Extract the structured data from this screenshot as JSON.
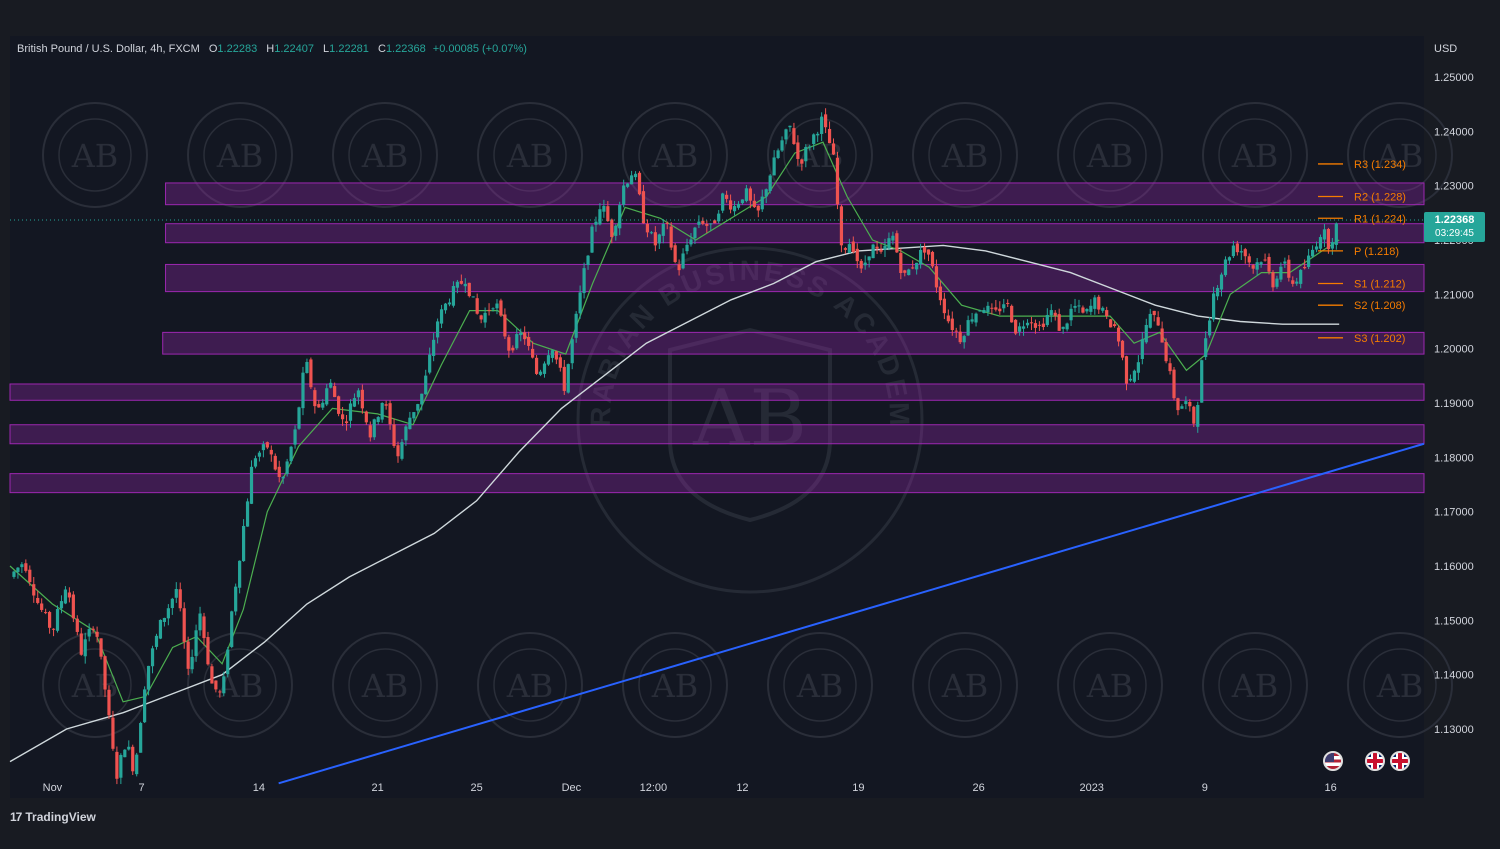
{
  "header": {
    "symbol": "British Pound / U.S. Dollar, 4h, FXCM",
    "o_label": "O",
    "o": "1.22283",
    "h_label": "H",
    "h": "1.22407",
    "l_label": "L",
    "l": "1.22281",
    "c_label": "C",
    "c": "1.22368",
    "change": "+0.00085 (+0.07%)"
  },
  "currency": "USD",
  "last_price": {
    "value": "1.22368",
    "countdown": "03:29:45",
    "color": "#26a69a"
  },
  "brand": {
    "logo": "17",
    "name": "TradingView"
  },
  "watermark": {
    "initials": "AB",
    "text": "ARABIAN BUSINESS ACADEMY"
  },
  "colors": {
    "background": "#181b22",
    "up": "#26a69a",
    "down": "#ef5350",
    "zone": "#9c27b0",
    "ema_fast": "#4caf50",
    "ma_slow": "#cfd8dc",
    "trendline": "#2962ff",
    "pivot": "#f57c00"
  },
  "chart_data": {
    "type": "candlestick",
    "title": "British Pound / U.S. Dollar, 4h, FXCM",
    "ylim": [
      1.12,
      1.255
    ],
    "yticks": [
      "1.13000",
      "1.14000",
      "1.15000",
      "1.16000",
      "1.17000",
      "1.18000",
      "1.19000",
      "1.20000",
      "1.21000",
      "1.22000",
      "1.23000",
      "1.24000",
      "1.25000"
    ],
    "x_range": [
      0,
      100
    ],
    "xticks": [
      {
        "label": "Nov",
        "t": 3
      },
      {
        "label": "7",
        "t": 9.3
      },
      {
        "label": "14",
        "t": 17.6
      },
      {
        "label": "21",
        "t": 26
      },
      {
        "label": "25",
        "t": 33
      },
      {
        "label": "Dec",
        "t": 39.7
      },
      {
        "label": "12:00",
        "t": 45.5
      },
      {
        "label": "12",
        "t": 51.8
      },
      {
        "label": "19",
        "t": 60
      },
      {
        "label": "26",
        "t": 68.5
      },
      {
        "label": "2023",
        "t": 76.5
      },
      {
        "label": "9",
        "t": 84.5
      },
      {
        "label": "16",
        "t": 93.4
      }
    ],
    "price_path": [
      [
        0,
        1.158
      ],
      [
        1,
        1.161
      ],
      [
        2,
        1.153
      ],
      [
        3,
        1.148
      ],
      [
        4,
        1.157
      ],
      [
        5,
        1.144
      ],
      [
        6,
        1.15
      ],
      [
        6.8,
        1.136
      ],
      [
        7.5,
        1.121
      ],
      [
        8.2,
        1.128
      ],
      [
        8.8,
        1.122
      ],
      [
        9.6,
        1.14
      ],
      [
        10.6,
        1.149
      ],
      [
        11.8,
        1.156
      ],
      [
        12.6,
        1.14
      ],
      [
        13.4,
        1.152
      ],
      [
        14.3,
        1.138
      ],
      [
        15,
        1.136
      ],
      [
        15.6,
        1.15
      ],
      [
        16.4,
        1.165
      ],
      [
        17.2,
        1.18
      ],
      [
        18.2,
        1.182
      ],
      [
        19.2,
        1.175
      ],
      [
        20.2,
        1.185
      ],
      [
        20.9,
        1.198
      ],
      [
        21.7,
        1.188
      ],
      [
        22.6,
        1.194
      ],
      [
        23.6,
        1.186
      ],
      [
        24.6,
        1.193
      ],
      [
        25.5,
        1.184
      ],
      [
        26.4,
        1.191
      ],
      [
        27.4,
        1.18
      ],
      [
        28.2,
        1.187
      ],
      [
        29.2,
        1.192
      ],
      [
        30.2,
        1.205
      ],
      [
        31.2,
        1.21
      ],
      [
        32.2,
        1.213
      ],
      [
        33.2,
        1.205
      ],
      [
        34.3,
        1.209
      ],
      [
        35.3,
        1.2
      ],
      [
        36.3,
        1.203
      ],
      [
        37.3,
        1.195
      ],
      [
        38.3,
        1.201
      ],
      [
        39.2,
        1.193
      ],
      [
        40.2,
        1.208
      ],
      [
        41.0,
        1.22
      ],
      [
        41.8,
        1.227
      ],
      [
        42.6,
        1.221
      ],
      [
        43.4,
        1.23
      ],
      [
        44.1,
        1.233
      ],
      [
        44.8,
        1.224
      ],
      [
        45.6,
        1.219
      ],
      [
        46.4,
        1.223
      ],
      [
        47.2,
        1.214
      ],
      [
        48.0,
        1.22
      ],
      [
        48.8,
        1.224
      ],
      [
        49.6,
        1.222
      ],
      [
        50.4,
        1.228
      ],
      [
        51.2,
        1.226
      ],
      [
        52.0,
        1.229
      ],
      [
        52.8,
        1.224
      ],
      [
        53.6,
        1.231
      ],
      [
        54.4,
        1.237
      ],
      [
        55.2,
        1.241
      ],
      [
        55.8,
        1.234
      ],
      [
        56.6,
        1.238
      ],
      [
        57.4,
        1.242
      ],
      [
        58.2,
        1.236
      ],
      [
        58.8,
        1.218
      ],
      [
        59.5,
        1.22
      ],
      [
        60.2,
        1.214
      ],
      [
        60.9,
        1.219
      ],
      [
        61.6,
        1.217
      ],
      [
        62.4,
        1.221
      ],
      [
        63.2,
        1.213
      ],
      [
        64.0,
        1.216
      ],
      [
        64.8,
        1.219
      ],
      [
        65.6,
        1.211
      ],
      [
        66.4,
        1.205
      ],
      [
        67.2,
        1.202
      ],
      [
        68.0,
        1.206
      ],
      [
        68.8,
        1.208
      ],
      [
        69.6,
        1.206
      ],
      [
        70.4,
        1.209
      ],
      [
        71.2,
        1.203
      ],
      [
        72.0,
        1.206
      ],
      [
        72.8,
        1.204
      ],
      [
        73.6,
        1.207
      ],
      [
        74.4,
        1.203
      ],
      [
        75.2,
        1.208
      ],
      [
        76.0,
        1.206
      ],
      [
        76.8,
        1.209
      ],
      [
        77.6,
        1.205
      ],
      [
        78.2,
        1.204
      ],
      [
        79.0,
        1.194
      ],
      [
        79.8,
        1.198
      ],
      [
        80.5,
        1.206
      ],
      [
        81.2,
        1.205
      ],
      [
        81.8,
        1.198
      ],
      [
        82.5,
        1.189
      ],
      [
        83.2,
        1.19
      ],
      [
        83.8,
        1.186
      ],
      [
        84.4,
        1.2
      ],
      [
        85.1,
        1.21
      ],
      [
        85.8,
        1.215
      ],
      [
        86.5,
        1.219
      ],
      [
        87.2,
        1.218
      ],
      [
        87.9,
        1.215
      ],
      [
        88.6,
        1.217
      ],
      [
        89.3,
        1.212
      ],
      [
        90.0,
        1.216
      ],
      [
        90.7,
        1.212
      ],
      [
        91.4,
        1.214
      ],
      [
        92.1,
        1.218
      ],
      [
        92.8,
        1.222
      ],
      [
        93.3,
        1.219
      ],
      [
        93.7,
        1.222
      ],
      [
        94.0,
        1.2237
      ]
    ],
    "ema_fast": [
      [
        0,
        1.16
      ],
      [
        3,
        1.153
      ],
      [
        6,
        1.148
      ],
      [
        8,
        1.135
      ],
      [
        9.6,
        1.136
      ],
      [
        11.5,
        1.145
      ],
      [
        13.2,
        1.147
      ],
      [
        15,
        1.142
      ],
      [
        16.5,
        1.152
      ],
      [
        18.2,
        1.17
      ],
      [
        20.4,
        1.182
      ],
      [
        22.8,
        1.189
      ],
      [
        26,
        1.188
      ],
      [
        28.5,
        1.186
      ],
      [
        30.5,
        1.197
      ],
      [
        32.5,
        1.207
      ],
      [
        34.5,
        1.207
      ],
      [
        37,
        1.201
      ],
      [
        39.3,
        1.199
      ],
      [
        41.2,
        1.212
      ],
      [
        43.5,
        1.226
      ],
      [
        46,
        1.224
      ],
      [
        48.5,
        1.22
      ],
      [
        51,
        1.224
      ],
      [
        53.5,
        1.228
      ],
      [
        55.5,
        1.236
      ],
      [
        57.5,
        1.238
      ],
      [
        59.2,
        1.228
      ],
      [
        61,
        1.22
      ],
      [
        63,
        1.218
      ],
      [
        65,
        1.215
      ],
      [
        67.3,
        1.208
      ],
      [
        70,
        1.206
      ],
      [
        72.8,
        1.206
      ],
      [
        75.3,
        1.206
      ],
      [
        77.8,
        1.206
      ],
      [
        79.5,
        1.201
      ],
      [
        81.3,
        1.203
      ],
      [
        83.2,
        1.196
      ],
      [
        84.6,
        1.199
      ],
      [
        86.3,
        1.21
      ],
      [
        88.5,
        1.214
      ],
      [
        90.5,
        1.214
      ],
      [
        92.8,
        1.218
      ],
      [
        94,
        1.22
      ]
    ],
    "ma_slow": [
      [
        0,
        1.124
      ],
      [
        4,
        1.13
      ],
      [
        8,
        1.133
      ],
      [
        12,
        1.137
      ],
      [
        15,
        1.14
      ],
      [
        18,
        1.146
      ],
      [
        21,
        1.153
      ],
      [
        24,
        1.158
      ],
      [
        27,
        1.162
      ],
      [
        30,
        1.166
      ],
      [
        33,
        1.172
      ],
      [
        36,
        1.181
      ],
      [
        39,
        1.189
      ],
      [
        42,
        1.195
      ],
      [
        45,
        1.201
      ],
      [
        48,
        1.205
      ],
      [
        51,
        1.209
      ],
      [
        54,
        1.212
      ],
      [
        57,
        1.216
      ],
      [
        60,
        1.218
      ],
      [
        63,
        1.2185
      ],
      [
        66,
        1.219
      ],
      [
        69,
        1.218
      ],
      [
        72,
        1.216
      ],
      [
        75,
        1.214
      ],
      [
        78,
        1.211
      ],
      [
        81,
        1.208
      ],
      [
        84,
        1.206
      ],
      [
        87,
        1.205
      ],
      [
        90,
        1.2045
      ],
      [
        94,
        1.2045
      ]
    ],
    "zones": [
      {
        "t0": 11,
        "y0": 1.2265,
        "y1": 1.2305
      },
      {
        "t0": 11,
        "y0": 1.2195,
        "y1": 1.223
      },
      {
        "t0": 11,
        "y0": 1.2105,
        "y1": 1.2155
      },
      {
        "t0": 10.8,
        "y0": 1.199,
        "y1": 1.203
      },
      {
        "t0": 0,
        "y0": 1.1905,
        "y1": 1.1935
      },
      {
        "t0": 0,
        "y0": 1.1825,
        "y1": 1.186
      },
      {
        "t0": 0,
        "y0": 1.1735,
        "y1": 1.177
      }
    ],
    "trendline": {
      "t0": 19,
      "y0": 1.12,
      "t1": 100,
      "y1": 1.1825
    },
    "pivots": [
      {
        "label": "R3 (1.234)",
        "value": 1.234
      },
      {
        "label": "R2 (1.228)",
        "value": 1.228
      },
      {
        "label": "R1 (1.224)",
        "value": 1.224
      },
      {
        "label": "P (1.218)",
        "value": 1.218
      },
      {
        "label": "S1 (1.212)",
        "value": 1.212
      },
      {
        "label": "S2 (1.208)",
        "value": 1.208
      },
      {
        "label": "S3 (1.202)",
        "value": 1.202
      }
    ],
    "grid": false,
    "legend": "none"
  }
}
